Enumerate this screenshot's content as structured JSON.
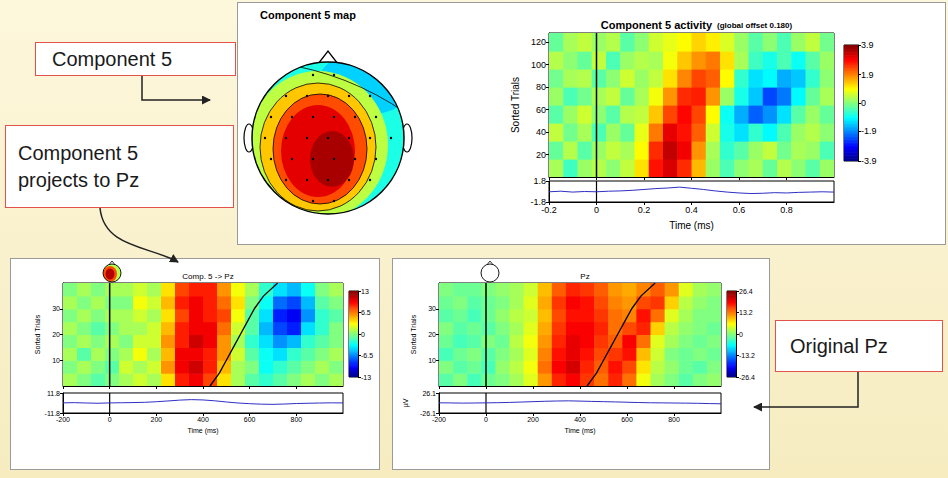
{
  "callouts": [
    "Component 5",
    "Component 5 projects to Pz",
    "Original Pz"
  ],
  "scalp_map": {
    "title": "Component 5 map"
  },
  "chart_data": [
    {
      "type": "heatmap",
      "title": "Component 5 activity",
      "subtitle": "(global offset 0.180)",
      "x_label": "Time (ms)",
      "y_label": "Sorted Trials",
      "xlim": [
        -0.2,
        1.0
      ],
      "xticks": [
        -0.2,
        0,
        0.2,
        0.4,
        0.6,
        0.8
      ],
      "ylim": [
        0,
        128
      ],
      "yticks": [
        20,
        40,
        60,
        80,
        100,
        120
      ],
      "event_time": 0,
      "x": [
        -0.17,
        -0.11,
        -0.05,
        0.01,
        0.07,
        0.13,
        0.19,
        0.25,
        0.31,
        0.37,
        0.43,
        0.49,
        0.55,
        0.61,
        0.67,
        0.73,
        0.79,
        0.85,
        0.91,
        0.97
      ],
      "y": [
        8,
        24,
        40,
        56,
        72,
        88,
        104,
        120
      ],
      "cells": [
        [
          0.3,
          -0.5,
          0.2,
          0.4,
          0.1,
          0.5,
          1.2,
          2.8,
          3.2,
          2.6,
          1.5,
          0.2,
          -0.4,
          0.1,
          0.3,
          -0.2,
          0.4,
          0.1,
          -0.3,
          0.2
        ],
        [
          -0.2,
          0.4,
          -0.3,
          0.2,
          0.5,
          0.3,
          1.0,
          2.6,
          3.4,
          3.0,
          1.8,
          0.3,
          -0.6,
          -0.3,
          0.2,
          0.5,
          -0.1,
          0.3,
          0.2,
          -0.4
        ],
        [
          0.5,
          -0.1,
          0.3,
          -0.4,
          0.2,
          -0.2,
          0.8,
          2.0,
          3.1,
          2.8,
          2.2,
          0.6,
          -0.8,
          -1.2,
          -0.6,
          -1.0,
          -0.4,
          0.2,
          0.4,
          0.1
        ],
        [
          -0.3,
          0.2,
          0.6,
          0.1,
          -0.3,
          0.4,
          0.5,
          1.4,
          2.4,
          2.9,
          2.4,
          1.0,
          -0.9,
          -1.6,
          -2.2,
          -1.8,
          -1.2,
          -0.3,
          0.2,
          -0.2
        ],
        [
          0.2,
          -0.4,
          -0.1,
          0.3,
          0.5,
          -0.2,
          0.3,
          0.9,
          1.8,
          2.6,
          2.7,
          1.8,
          0.2,
          -0.8,
          -1.4,
          -2.4,
          -2.0,
          -1.0,
          -0.2,
          0.3
        ],
        [
          -0.1,
          0.3,
          0.4,
          -0.3,
          0.1,
          0.6,
          0.2,
          0.5,
          1.2,
          1.9,
          2.4,
          2.2,
          1.0,
          -0.6,
          -1.2,
          -1.0,
          -1.6,
          -1.4,
          -0.6,
          0.1
        ],
        [
          0.4,
          0.1,
          -0.2,
          0.5,
          -0.4,
          0.2,
          0.4,
          0.3,
          0.9,
          1.4,
          1.8,
          2.0,
          1.2,
          0.3,
          -0.5,
          -0.8,
          -0.4,
          -0.9,
          -0.3,
          0.2
        ],
        [
          -0.2,
          0.3,
          0.5,
          0.2,
          0.4,
          -0.3,
          0.1,
          0.6,
          0.8,
          1.0,
          1.3,
          1.1,
          0.7,
          0.2,
          -0.3,
          0.1,
          -0.4,
          0.2,
          0.5,
          -0.1
        ]
      ],
      "colorbar": {
        "range": [
          -3.9,
          3.9
        ],
        "ticks": [
          3.9,
          1.9,
          0,
          -1.9,
          -3.9
        ]
      },
      "erp": {
        "x": [
          -0.2,
          -0.15,
          -0.1,
          -0.05,
          0,
          0.05,
          0.1,
          0.15,
          0.2,
          0.25,
          0.3,
          0.35,
          0.4,
          0.45,
          0.5,
          0.55,
          0.6,
          0.65,
          0.7,
          0.75,
          0.8,
          0.85,
          0.9,
          0.95,
          1.0
        ],
        "values": [
          -0.05,
          0.05,
          -0.1,
          0.0,
          -0.05,
          0.05,
          0.1,
          0.2,
          0.35,
          0.5,
          0.6,
          0.75,
          0.55,
          0.35,
          0.1,
          -0.1,
          -0.25,
          -0.35,
          -0.3,
          -0.2,
          -0.25,
          -0.15,
          -0.1,
          -0.05,
          -0.1
        ],
        "ylim": [
          -1.8,
          1.8
        ],
        "yticks": [
          -1.8,
          1.8
        ]
      }
    },
    {
      "type": "heatmap",
      "title": "Comp. 5 -> Pz",
      "x_label": "Time (ms)",
      "y_label": "Sorted Trials",
      "xlim": [
        -200,
        1000
      ],
      "xticks": [
        -200,
        0,
        200,
        400,
        600,
        800
      ],
      "ylim": [
        0,
        40
      ],
      "yticks": [
        10,
        20,
        30
      ],
      "event_time": 0,
      "x": [
        -170,
        -110,
        -50,
        10,
        70,
        130,
        190,
        250,
        310,
        370,
        430,
        490,
        550,
        610,
        670,
        730,
        790,
        850,
        910,
        970
      ],
      "y": [
        2.5,
        7.5,
        12.5,
        17.5,
        22.5,
        27.5,
        32.5,
        37.5
      ],
      "cells": [
        [
          1,
          0,
          -1,
          0,
          1,
          2,
          1,
          4,
          9,
          10,
          8,
          4,
          1,
          -1,
          -2,
          -1,
          0,
          1,
          0,
          1
        ],
        [
          0,
          1,
          0,
          -1,
          2,
          1,
          2,
          6,
          10,
          11,
          9,
          5,
          1,
          0,
          -3,
          -2,
          -1,
          0,
          1,
          0
        ],
        [
          1,
          -1,
          1,
          0,
          1,
          3,
          1,
          5,
          10,
          10,
          9,
          6,
          2,
          -1,
          -3,
          -4,
          -2,
          -1,
          0,
          1
        ],
        [
          0,
          1,
          0,
          1,
          0,
          2,
          2,
          6,
          9,
          11,
          10,
          6,
          1,
          -2,
          -4,
          -6,
          -5,
          -2,
          -1,
          0
        ],
        [
          1,
          0,
          -1,
          0,
          1,
          1,
          2,
          5,
          9,
          10,
          10,
          7,
          2,
          -1,
          -5,
          -8,
          -9,
          -4,
          -2,
          0
        ],
        [
          0,
          1,
          0,
          1,
          1,
          2,
          1,
          4,
          8,
          10,
          9,
          8,
          3,
          -1,
          -4,
          -9,
          -10,
          -6,
          -2,
          -1
        ],
        [
          1,
          0,
          1,
          0,
          0,
          3,
          2,
          5,
          9,
          10,
          9,
          7,
          4,
          0,
          -3,
          -7,
          -8,
          -5,
          -1,
          0
        ],
        [
          0,
          1,
          0,
          1,
          1,
          2,
          1,
          4,
          8,
          9,
          9,
          6,
          3,
          1,
          -2,
          -4,
          -5,
          -3,
          0,
          1
        ]
      ],
      "colorbar": {
        "range": [
          -13,
          13
        ],
        "ticks": [
          13,
          6.5,
          0,
          -6.5,
          -13
        ]
      },
      "sort_curve": {
        "x": [
          430,
          470,
          500,
          530,
          560,
          590,
          620,
          660,
          720
        ],
        "y": [
          0,
          5,
          10,
          15,
          20,
          25,
          30,
          35,
          40
        ]
      },
      "erp": {
        "x": [
          -200,
          -150,
          -100,
          -50,
          0,
          50,
          100,
          150,
          200,
          250,
          300,
          350,
          400,
          450,
          500,
          550,
          600,
          650,
          700,
          750,
          800,
          850,
          900,
          950,
          1000
        ],
        "values": [
          0.2,
          0.4,
          0.0,
          -0.3,
          0.1,
          0.3,
          0.5,
          0.8,
          1.5,
          2.4,
          3.4,
          4.0,
          3.6,
          2.6,
          1.2,
          0.0,
          -0.8,
          -1.4,
          -1.6,
          -1.2,
          -0.6,
          -0.3,
          0.0,
          0.2,
          0.1
        ],
        "ylim": [
          -11.8,
          11.8
        ],
        "yticks": [
          -11.8,
          11.8
        ]
      }
    },
    {
      "type": "heatmap",
      "title": "Pz",
      "x_label": "Time (ms)",
      "y_label": "Sorted Trials",
      "xlim": [
        -200,
        1000
      ],
      "xticks": [
        -200,
        0,
        200,
        400,
        600,
        800
      ],
      "ylim": [
        0,
        40
      ],
      "yticks": [
        10,
        20,
        30
      ],
      "event_time": 0,
      "x": [
        -170,
        -110,
        -50,
        10,
        70,
        130,
        190,
        250,
        310,
        370,
        430,
        490,
        550,
        610,
        670,
        730,
        790,
        850,
        910,
        970
      ],
      "y": [
        2.5,
        7.5,
        12.5,
        17.5,
        22.5,
        27.5,
        32.5,
        37.5
      ],
      "cells": [
        [
          -2,
          0,
          -3,
          -1,
          0,
          2,
          5,
          12,
          18,
          20,
          17,
          14,
          18,
          14,
          6,
          2,
          0,
          -2,
          0,
          1
        ],
        [
          0,
          -2,
          -1,
          -3,
          1,
          3,
          6,
          14,
          20,
          22,
          18,
          15,
          19,
          16,
          8,
          3,
          1,
          -1,
          -2,
          0
        ],
        [
          -3,
          -1,
          0,
          -2,
          0,
          2,
          5,
          13,
          19,
          21,
          19,
          16,
          17,
          19,
          10,
          4,
          0,
          -1,
          0,
          -1
        ],
        [
          -1,
          -3,
          -2,
          0,
          -1,
          3,
          6,
          12,
          18,
          21,
          20,
          17,
          15,
          20,
          14,
          5,
          2,
          0,
          -1,
          0
        ],
        [
          0,
          -2,
          -1,
          -2,
          0,
          2,
          5,
          11,
          17,
          20,
          20,
          18,
          14,
          16,
          18,
          9,
          3,
          1,
          0,
          -1
        ],
        [
          -2,
          -1,
          -3,
          -1,
          1,
          3,
          4,
          10,
          16,
          19,
          19,
          17,
          14,
          13,
          19,
          14,
          5,
          2,
          0,
          0
        ],
        [
          -1,
          0,
          -2,
          -1,
          0,
          2,
          5,
          11,
          17,
          20,
          19,
          16,
          13,
          12,
          16,
          17,
          9,
          3,
          1,
          0
        ],
        [
          0,
          -1,
          -1,
          0,
          1,
          2,
          4,
          10,
          15,
          18,
          17,
          15,
          12,
          11,
          13,
          15,
          12,
          5,
          2,
          1
        ]
      ],
      "colorbar": {
        "range": [
          -26.4,
          26.4
        ],
        "ticks": [
          26.4,
          13.2,
          0,
          -13.2,
          -26.4
        ]
      },
      "sort_curve": {
        "x": [
          430,
          470,
          500,
          530,
          560,
          590,
          620,
          660,
          720
        ],
        "y": [
          0,
          5,
          10,
          15,
          20,
          25,
          30,
          35,
          40
        ]
      },
      "erp": {
        "x": [
          -200,
          -150,
          -100,
          -50,
          0,
          50,
          100,
          150,
          200,
          250,
          300,
          350,
          400,
          450,
          500,
          550,
          600,
          650,
          700,
          750,
          800,
          850,
          900,
          950,
          1000
        ],
        "values": [
          0.5,
          0.2,
          -0.3,
          0.0,
          0.4,
          0.8,
          1.5,
          2.5,
          3.5,
          4.5,
          5.2,
          5.6,
          5.0,
          4.2,
          3.5,
          2.8,
          2.0,
          1.2,
          0.6,
          0.3,
          0.0,
          -0.4,
          -0.8,
          -1.5,
          -2.0
        ],
        "ylim": [
          -26.1,
          26.1
        ],
        "yticks": [
          -26.1,
          26.1
        ],
        "y_label": "µV"
      }
    }
  ]
}
